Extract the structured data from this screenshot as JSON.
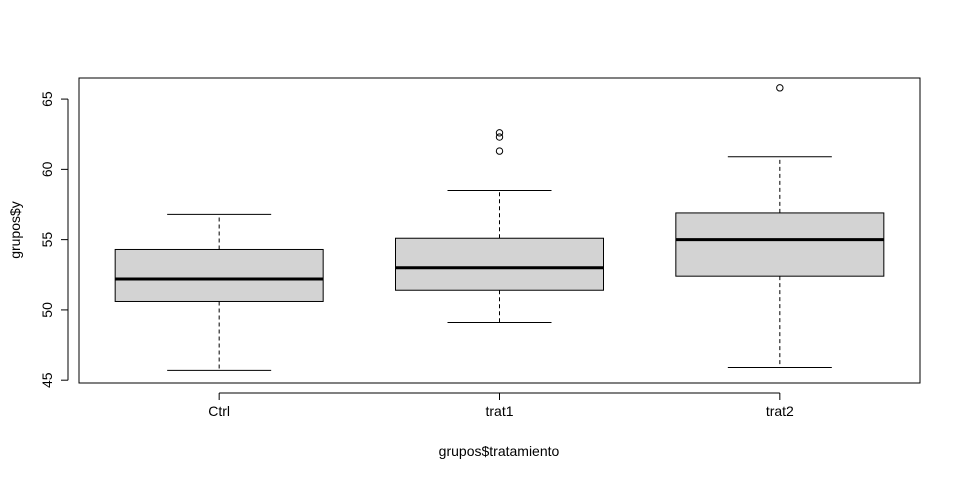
{
  "chart_data": {
    "type": "boxplot",
    "title": "",
    "xlabel": "grupos$tratamiento",
    "ylabel": "grupos$y",
    "ylim": [
      44.8,
      66.5
    ],
    "yticks": [
      45,
      50,
      55,
      60,
      65
    ],
    "grid": false,
    "categories": [
      "Ctrl",
      "trat1",
      "trat2"
    ],
    "boxes": [
      {
        "category": "Ctrl",
        "whisker_low": 45.7,
        "q1": 50.6,
        "median": 52.2,
        "q3": 54.3,
        "whisker_high": 56.8,
        "outliers": []
      },
      {
        "category": "trat1",
        "whisker_low": 49.1,
        "q1": 51.4,
        "median": 53.0,
        "q3": 55.1,
        "whisker_high": 58.5,
        "outliers": [
          61.3,
          62.3,
          62.6
        ]
      },
      {
        "category": "trat2",
        "whisker_low": 45.9,
        "q1": 52.4,
        "median": 55.0,
        "q3": 56.9,
        "whisker_high": 60.9,
        "outliers": [
          65.8
        ]
      }
    ],
    "colors": {
      "box_fill": "#d3d3d3",
      "stroke": "#000000"
    }
  }
}
